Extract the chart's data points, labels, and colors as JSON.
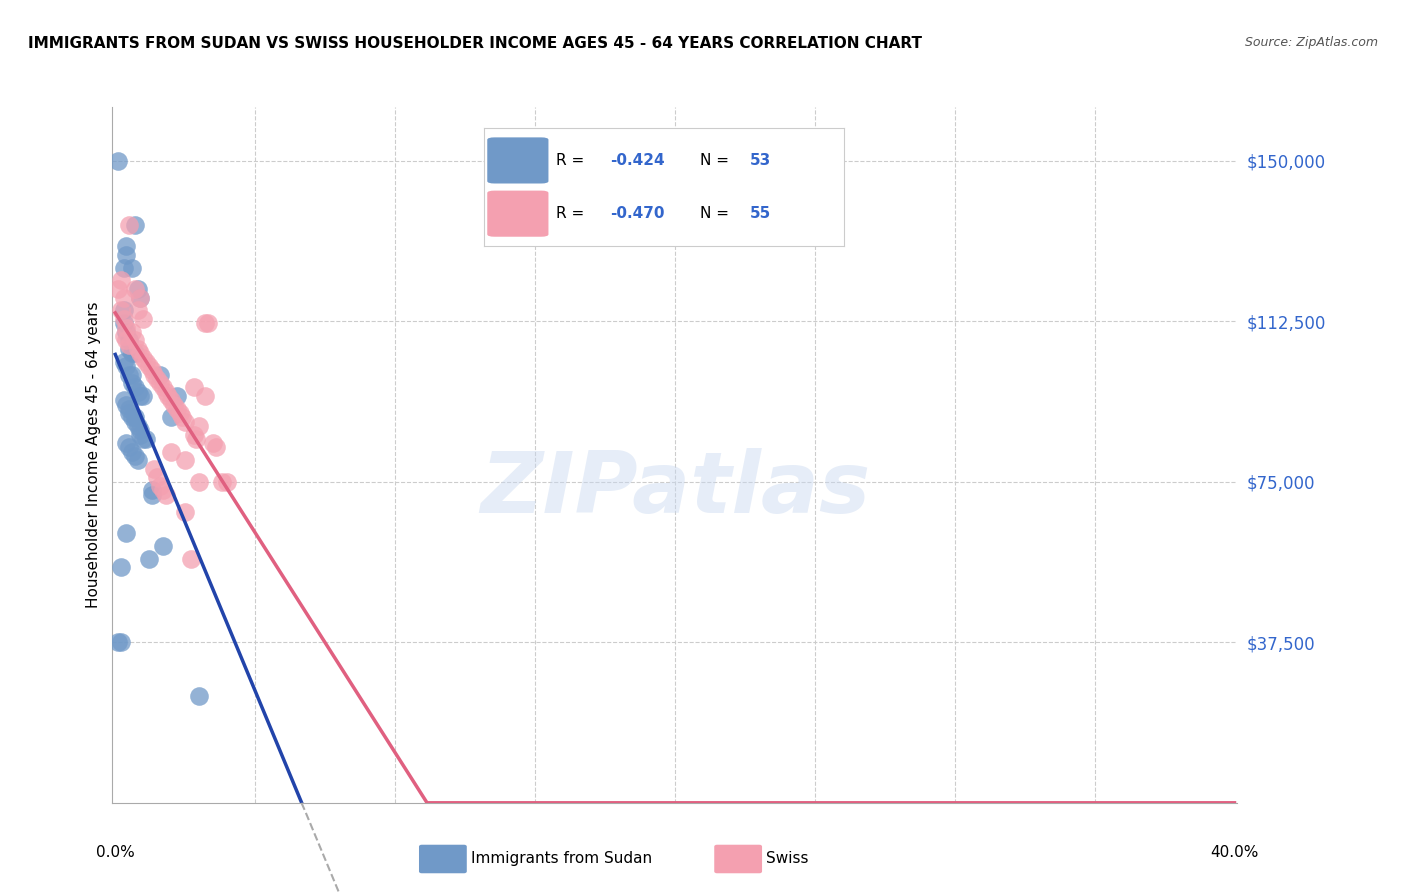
{
  "title": "IMMIGRANTS FROM SUDAN VS SWISS HOUSEHOLDER INCOME AGES 45 - 64 YEARS CORRELATION CHART",
  "source": "Source: ZipAtlas.com",
  "ylabel": "Householder Income Ages 45 - 64 years",
  "yticks": [
    37500,
    75000,
    112500,
    150000
  ],
  "ytick_labels": [
    "$37,500",
    "$75,000",
    "$112,500",
    "$150,000"
  ],
  "xlim": [
    0.0,
    0.4
  ],
  "ylim": [
    0,
    162500
  ],
  "legend_blue_r": "-0.424",
  "legend_blue_n": "53",
  "legend_pink_r": "-0.470",
  "legend_pink_n": "55",
  "legend_label_blue": "Immigrants from Sudan",
  "legend_label_pink": "Swiss",
  "blue_color": "#7099c8",
  "pink_color": "#f4a0b0",
  "blue_line_color": "#2244aa",
  "pink_line_color": "#e06080",
  "accent_color": "#3366cc",
  "grid_color": "#cccccc",
  "blue_scatter": [
    [
      0.001,
      150000
    ],
    [
      0.004,
      130000
    ],
    [
      0.004,
      128000
    ],
    [
      0.003,
      125000
    ],
    [
      0.006,
      125000
    ],
    [
      0.007,
      135000
    ],
    [
      0.008,
      120000
    ],
    [
      0.009,
      118000
    ],
    [
      0.003,
      115000
    ],
    [
      0.003,
      112000
    ],
    [
      0.004,
      110000
    ],
    [
      0.005,
      108000
    ],
    [
      0.005,
      106000
    ],
    [
      0.006,
      105000
    ],
    [
      0.007,
      105000
    ],
    [
      0.003,
      103000
    ],
    [
      0.004,
      102000
    ],
    [
      0.005,
      100000
    ],
    [
      0.006,
      100000
    ],
    [
      0.006,
      98000
    ],
    [
      0.007,
      97000
    ],
    [
      0.008,
      96000
    ],
    [
      0.009,
      95000
    ],
    [
      0.01,
      95000
    ],
    [
      0.003,
      94000
    ],
    [
      0.004,
      93000
    ],
    [
      0.005,
      92000
    ],
    [
      0.005,
      91000
    ],
    [
      0.006,
      90000
    ],
    [
      0.007,
      90000
    ],
    [
      0.007,
      89000
    ],
    [
      0.008,
      88000
    ],
    [
      0.009,
      87000
    ],
    [
      0.009,
      86000
    ],
    [
      0.01,
      85000
    ],
    [
      0.011,
      85000
    ],
    [
      0.004,
      84000
    ],
    [
      0.005,
      83000
    ],
    [
      0.006,
      82000
    ],
    [
      0.007,
      81000
    ],
    [
      0.008,
      80000
    ],
    [
      0.001,
      37500
    ],
    [
      0.002,
      37500
    ],
    [
      0.004,
      63000
    ],
    [
      0.013,
      73000
    ],
    [
      0.013,
      72000
    ],
    [
      0.017,
      60000
    ],
    [
      0.002,
      55000
    ],
    [
      0.012,
      57000
    ],
    [
      0.03,
      25000
    ],
    [
      0.016,
      100000
    ],
    [
      0.02,
      90000
    ],
    [
      0.022,
      95000
    ]
  ],
  "pink_scatter": [
    [
      0.001,
      120000
    ],
    [
      0.002,
      122000
    ],
    [
      0.003,
      118000
    ],
    [
      0.002,
      115000
    ],
    [
      0.003,
      113000
    ],
    [
      0.004,
      111000
    ],
    [
      0.003,
      109000
    ],
    [
      0.004,
      108000
    ],
    [
      0.005,
      107000
    ],
    [
      0.005,
      135000
    ],
    [
      0.007,
      120000
    ],
    [
      0.009,
      118000
    ],
    [
      0.008,
      115000
    ],
    [
      0.01,
      113000
    ],
    [
      0.006,
      110000
    ],
    [
      0.007,
      108000
    ],
    [
      0.008,
      106000
    ],
    [
      0.009,
      105000
    ],
    [
      0.01,
      104000
    ],
    [
      0.011,
      103000
    ],
    [
      0.012,
      102000
    ],
    [
      0.013,
      101000
    ],
    [
      0.014,
      100000
    ],
    [
      0.015,
      99000
    ],
    [
      0.016,
      98000
    ],
    [
      0.017,
      97000
    ],
    [
      0.018,
      96000
    ],
    [
      0.019,
      95000
    ],
    [
      0.02,
      94000
    ],
    [
      0.021,
      93000
    ],
    [
      0.022,
      92000
    ],
    [
      0.023,
      91000
    ],
    [
      0.024,
      90000
    ],
    [
      0.025,
      89000
    ],
    [
      0.03,
      88000
    ],
    [
      0.032,
      112000
    ],
    [
      0.033,
      112000
    ],
    [
      0.028,
      86000
    ],
    [
      0.029,
      85000
    ],
    [
      0.035,
      84000
    ],
    [
      0.036,
      83000
    ],
    [
      0.038,
      75000
    ],
    [
      0.04,
      75000
    ],
    [
      0.02,
      82000
    ],
    [
      0.025,
      80000
    ],
    [
      0.014,
      78000
    ],
    [
      0.015,
      76000
    ],
    [
      0.016,
      74000
    ],
    [
      0.017,
      73000
    ],
    [
      0.018,
      72000
    ],
    [
      0.025,
      68000
    ],
    [
      0.028,
      97000
    ],
    [
      0.03,
      75000
    ],
    [
      0.032,
      95000
    ],
    [
      0.027,
      57000
    ]
  ]
}
